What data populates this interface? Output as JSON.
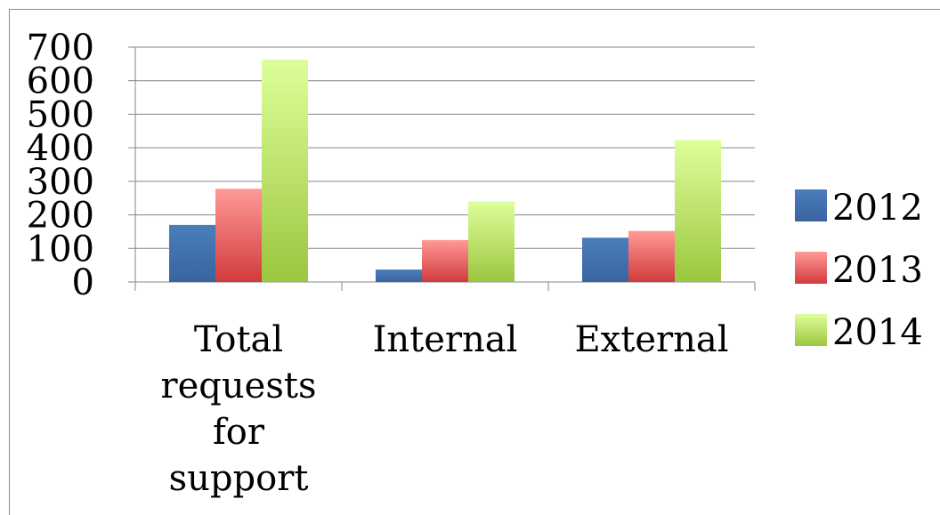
{
  "chart_data": {
    "type": "bar",
    "categories": [
      "Total requests for support",
      "Internal",
      "External"
    ],
    "category_label_lines": [
      [
        "Total",
        "requests",
        "for",
        "support"
      ],
      [
        "Internal"
      ],
      [
        "External"
      ]
    ],
    "series": [
      {
        "name": "2012",
        "values": [
          170,
          37,
          132
        ],
        "color": "#4a7ebb",
        "color_dark": "#3a64a0"
      },
      {
        "name": "2013",
        "values": [
          278,
          125,
          152
        ],
        "color": "#ff9a98",
        "color_dark": "#d13b3b"
      },
      {
        "name": "2014",
        "values": [
          663,
          240,
          423
        ],
        "color": "#ddff9a",
        "color_dark": "#9cc63f"
      }
    ],
    "ylim": [
      0,
      700
    ],
    "yticks": [
      "0",
      "100",
      "200",
      "300",
      "400",
      "500",
      "600",
      "700"
    ],
    "grid": true,
    "legend_position": "right",
    "title": "",
    "xlabel": "",
    "ylabel": ""
  }
}
